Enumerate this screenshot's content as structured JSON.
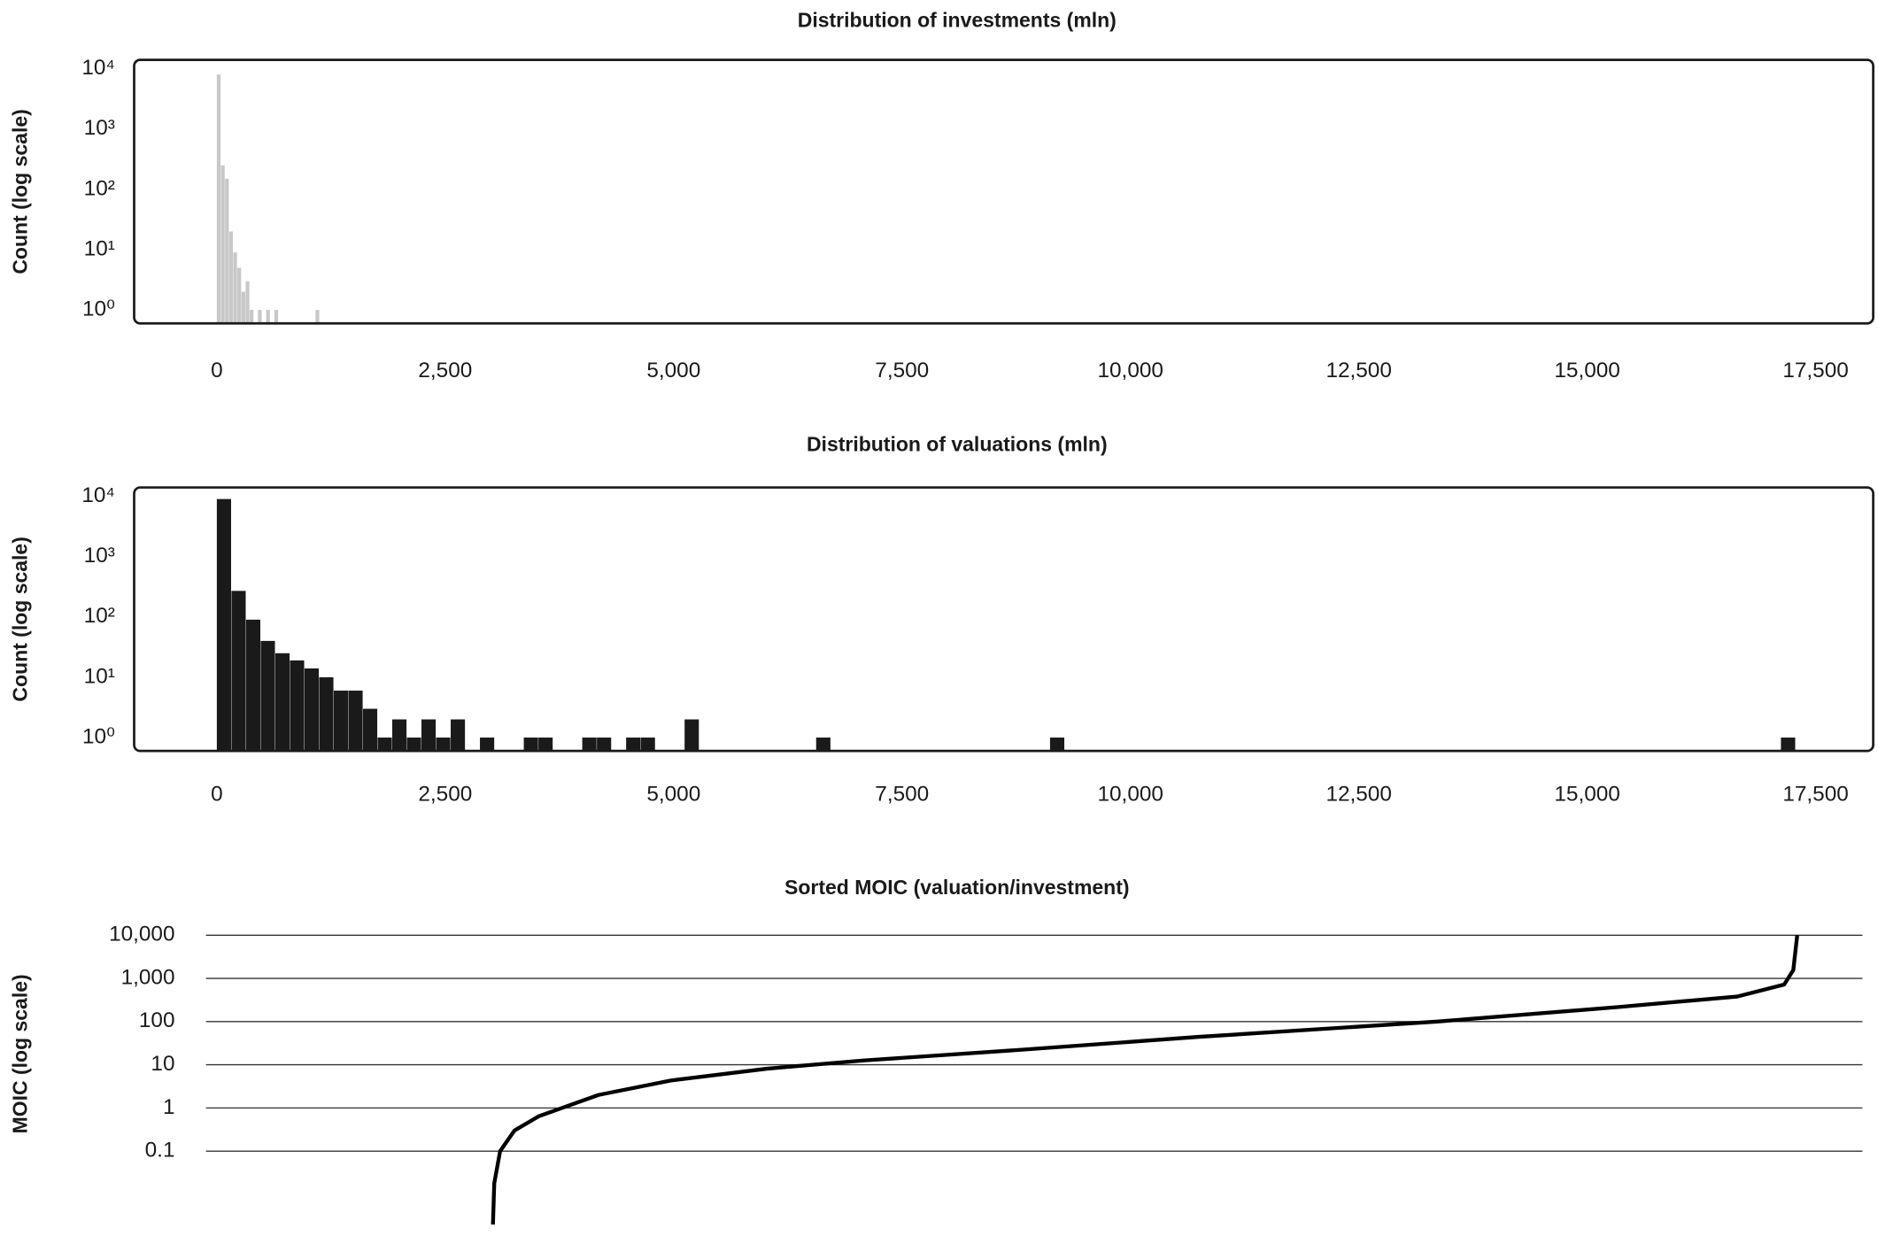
{
  "chart_data": [
    {
      "type": "histogram",
      "title": "Distribution of investments (mln)",
      "ylabel": "Count (log scale)",
      "color": "#c8c8c8",
      "yscale": "log",
      "grid": false,
      "bins": [
        0,
        45,
        90,
        135,
        180,
        225,
        270,
        315,
        360,
        405,
        450,
        495,
        540,
        585,
        630,
        675,
        720,
        765,
        810,
        855,
        900,
        945,
        990,
        1035,
        1080,
        1125
      ],
      "values": [
        8000,
        250,
        150,
        20,
        9,
        5,
        2,
        3,
        1,
        0,
        1,
        0,
        1,
        0,
        1,
        0,
        0,
        0,
        0,
        0,
        0,
        0,
        0,
        0,
        1
      ],
      "xlim": [
        -905,
        18130
      ],
      "xticks": [
        0,
        {
          "value": 2500,
          "label": "2,500"
        },
        {
          "value": 5000,
          "label": "5,000"
        },
        {
          "value": 7500,
          "label": "7,500"
        },
        {
          "value": 10000,
          "label": "10,000"
        },
        {
          "value": 12500,
          "label": "12,500"
        },
        {
          "value": 15000,
          "label": "15,000"
        },
        {
          "value": 17500,
          "label": "17,500"
        }
      ],
      "ylim": [
        0.6,
        14000
      ],
      "yticks": [
        {
          "value": 1,
          "label": "10⁰"
        },
        {
          "value": 10,
          "label": "10¹"
        },
        {
          "value": 100,
          "label": "10²"
        },
        {
          "value": 1000,
          "label": "10³"
        },
        {
          "value": 10000,
          "label": "10⁴"
        }
      ]
    },
    {
      "type": "histogram",
      "title": "Distribution of valuations (mln)",
      "ylabel": "Count (log scale)",
      "color": "#1a1a1a",
      "yscale": "log",
      "grid": false,
      "bins": [
        0,
        160,
        320,
        480,
        640,
        800,
        960,
        1120,
        1280,
        1440,
        1600,
        1760,
        1920,
        2080,
        2240,
        2400,
        2560,
        2720,
        2880,
        3040,
        3200,
        3360,
        3520,
        3680,
        3840,
        4000,
        4160,
        4320,
        4480,
        4640,
        4800,
        4960,
        5120,
        5280,
        5440,
        5600,
        5760,
        5920,
        6080,
        6240,
        6400,
        6560,
        6720,
        6880,
        7040,
        7200,
        7360,
        7520,
        7680,
        7840,
        8000,
        8160,
        8320,
        8480,
        8640,
        8800,
        8960,
        9120,
        9280,
        9440,
        9600,
        9760,
        9920,
        10080,
        10240,
        10400,
        10560,
        10720,
        10880,
        11040,
        11200,
        11360,
        11520,
        11680,
        11840,
        12000,
        12160,
        12320,
        12480,
        12640,
        12800,
        12960,
        13120,
        13280,
        13440,
        13600,
        13760,
        13920,
        14080,
        14240,
        14400,
        14560,
        14720,
        14880,
        15040,
        15200,
        15360,
        15520,
        15680,
        15840,
        16000,
        16160,
        16320,
        16480,
        16640,
        16800,
        16960,
        17120,
        17280
      ],
      "values": [
        9000,
        270,
        90,
        40,
        25,
        19,
        14,
        10,
        6,
        6,
        3,
        1,
        2,
        1,
        2,
        1,
        2,
        0,
        1,
        0,
        0,
        1,
        1,
        0,
        0,
        1,
        1,
        0,
        1,
        1,
        0,
        0,
        2,
        0,
        0,
        0,
        0,
        0,
        0,
        0,
        0,
        1,
        0,
        0,
        0,
        0,
        0,
        0,
        0,
        0,
        0,
        0,
        0,
        0,
        0,
        0,
        0,
        1,
        0,
        0,
        0,
        0,
        0,
        0,
        0,
        0,
        0,
        0,
        0,
        0,
        0,
        0,
        0,
        0,
        0,
        0,
        0,
        0,
        0,
        0,
        0,
        0,
        0,
        0,
        0,
        0,
        0,
        0,
        0,
        0,
        0,
        0,
        0,
        0,
        0,
        0,
        0,
        0,
        0,
        0,
        0,
        0,
        0,
        0,
        0,
        0,
        0,
        1
      ],
      "xlim": [
        -905,
        18130
      ],
      "xticks": [
        0,
        {
          "value": 2500,
          "label": "2,500"
        },
        {
          "value": 5000,
          "label": "5,000"
        },
        {
          "value": 7500,
          "label": "7,500"
        },
        {
          "value": 10000,
          "label": "10,000"
        },
        {
          "value": 12500,
          "label": "12,500"
        },
        {
          "value": 15000,
          "label": "15,000"
        },
        {
          "value": 17500,
          "label": "17,500"
        }
      ],
      "ylim": [
        0.6,
        14000
      ],
      "yticks": [
        {
          "value": 1,
          "label": "10⁰"
        },
        {
          "value": 10,
          "label": "10¹"
        },
        {
          "value": 100,
          "label": "10²"
        },
        {
          "value": 1000,
          "label": "10³"
        },
        {
          "value": 10000,
          "label": "10⁴"
        }
      ]
    },
    {
      "type": "line",
      "title": "Sorted MOIC (valuation/investment)",
      "ylabel": "MOIC (log scale)",
      "color": "#000000",
      "yscale": "log",
      "grid": true,
      "x": [
        0,
        0.1,
        0.55,
        1.65,
        3.5,
        5.3,
        8.1,
        13.6,
        21,
        28.3,
        40.3,
        54,
        72.4,
        86.2,
        95.4,
        99,
        99.7,
        100
      ],
      "values": [
        0.002,
        0.018,
        0.1,
        0.3,
        0.64,
        1,
        2,
        4.3,
        8.1,
        12.5,
        22,
        44,
        100,
        216,
        380,
        720,
        1560,
        10000
      ],
      "xlim": [
        -22,
        105
      ],
      "ylim": [
        0.0014,
        20000
      ],
      "yticks": [
        0.1,
        1,
        10,
        100,
        {
          "value": 1000,
          "label": "1,000"
        },
        {
          "value": 10000,
          "label": "10,000"
        }
      ]
    }
  ]
}
